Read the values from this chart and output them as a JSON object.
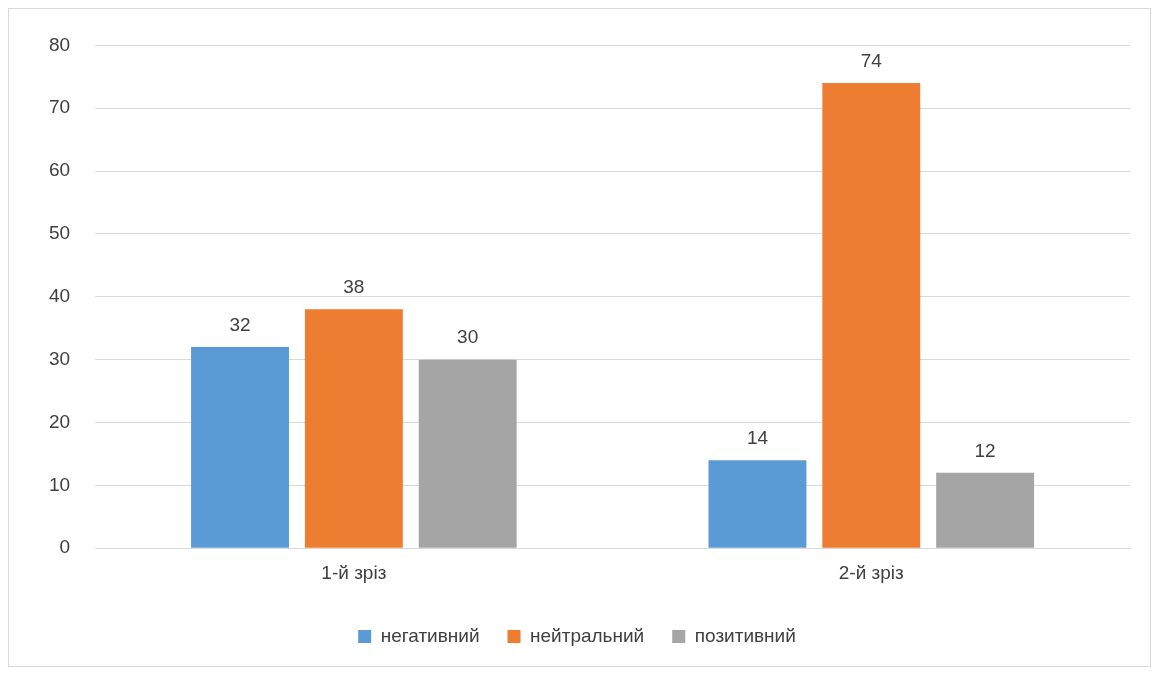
{
  "chart_data": {
    "type": "bar",
    "categories": [
      "1-й зріз",
      "2-й зріз"
    ],
    "series": [
      {
        "name": "негативний",
        "color": "#5b9bd5",
        "values": [
          32,
          14
        ]
      },
      {
        "name": "нейтральний",
        "color": "#ed7d31",
        "values": [
          38,
          74
        ]
      },
      {
        "name": "позитивний",
        "color": "#a5a5a5",
        "values": [
          30,
          12
        ]
      }
    ],
    "ylim": [
      0,
      80
    ],
    "yticks": [
      0,
      10,
      20,
      30,
      40,
      50,
      60,
      70,
      80
    ],
    "grid": "y",
    "legend": "bottom",
    "data_labels": true
  }
}
